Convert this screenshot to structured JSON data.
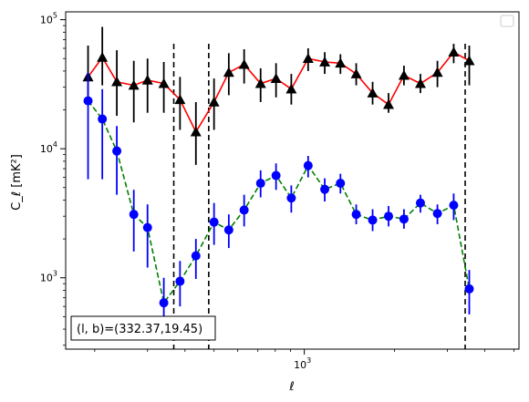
{
  "chart_data": {
    "type": "line",
    "title": "",
    "xlabel": "ℓ",
    "ylabel": "C_ℓ  [mK²]",
    "xscale": "log",
    "yscale": "log",
    "xlim": [
      160,
      5200
    ],
    "ylim": [
      280,
      115000
    ],
    "grid": false,
    "legend": {
      "placement": "top-right",
      "entries": []
    },
    "x_ticks": [
      {
        "value": 1000,
        "base": "10",
        "exp": "3"
      }
    ],
    "y_ticks": [
      {
        "value": 1000,
        "base": "10",
        "exp": "3"
      },
      {
        "value": 10000,
        "base": "10",
        "exp": "4"
      },
      {
        "value": 100000,
        "base": "10",
        "exp": "5"
      }
    ],
    "vlines": [
      367,
      480,
      3440
    ],
    "annotation": {
      "text": "(l, b)=(332.37,19.45)",
      "placement": "bottom-left"
    },
    "series": [
      {
        "color": "#ff0000",
        "marker": "triangle",
        "marker_color": "#000000",
        "error_color": "#000000",
        "points": [
          {
            "x": 190,
            "y": 36000,
            "lo": 22000,
            "hi": 63000
          },
          {
            "x": 212,
            "y": 51000,
            "lo": 31000,
            "hi": 88000
          },
          {
            "x": 237,
            "y": 33000,
            "lo": 18000,
            "hi": 58000
          },
          {
            "x": 270,
            "y": 31000,
            "lo": 16000,
            "hi": 48000
          },
          {
            "x": 300,
            "y": 34000,
            "lo": 19000,
            "hi": 50000
          },
          {
            "x": 340,
            "y": 32000,
            "lo": 19000,
            "hi": 47000
          },
          {
            "x": 385,
            "y": 24000,
            "lo": 14000,
            "hi": 36000
          },
          {
            "x": 435,
            "y": 13500,
            "lo": 7500,
            "hi": 23000
          },
          {
            "x": 500,
            "y": 23000,
            "lo": 14000,
            "hi": 35000
          },
          {
            "x": 560,
            "y": 39000,
            "lo": 26000,
            "hi": 55000
          },
          {
            "x": 630,
            "y": 45000,
            "lo": 32000,
            "hi": 59000
          },
          {
            "x": 715,
            "y": 32000,
            "lo": 23000,
            "hi": 42000
          },
          {
            "x": 805,
            "y": 35000,
            "lo": 25000,
            "hi": 46000
          },
          {
            "x": 905,
            "y": 29000,
            "lo": 22000,
            "hi": 38000
          },
          {
            "x": 1030,
            "y": 50000,
            "lo": 40000,
            "hi": 60000
          },
          {
            "x": 1170,
            "y": 47000,
            "lo": 38000,
            "hi": 56000
          },
          {
            "x": 1320,
            "y": 46000,
            "lo": 38000,
            "hi": 54000
          },
          {
            "x": 1490,
            "y": 38000,
            "lo": 31000,
            "hi": 46000
          },
          {
            "x": 1690,
            "y": 27000,
            "lo": 22000,
            "hi": 33000
          },
          {
            "x": 1910,
            "y": 22000,
            "lo": 19000,
            "hi": 27000
          },
          {
            "x": 2150,
            "y": 37000,
            "lo": 31000,
            "hi": 44000
          },
          {
            "x": 2440,
            "y": 32000,
            "lo": 27000,
            "hi": 38000
          },
          {
            "x": 3150,
            "y": 56000,
            "lo": 46000,
            "hi": 65000
          },
          {
            "x": 3550,
            "y": 48000,
            "lo": 31000,
            "hi": 63000
          },
          {
            "x": 2780,
            "y": 39000,
            "lo": 30000,
            "hi": 48000
          }
        ]
      },
      {
        "color": "#008000",
        "dashed": true,
        "marker": "circle",
        "marker_color": "#0000ff",
        "error_color": "#0000ff",
        "points": [
          {
            "x": 190,
            "y": 23500,
            "lo": 5800,
            "hi": 39000
          },
          {
            "x": 212,
            "y": 17000,
            "lo": 5800,
            "hi": 29000
          },
          {
            "x": 237,
            "y": 9600,
            "lo": 4400,
            "hi": 15000
          },
          {
            "x": 270,
            "y": 3100,
            "lo": 1600,
            "hi": 4800
          },
          {
            "x": 300,
            "y": 2450,
            "lo": 1200,
            "hi": 3700
          },
          {
            "x": 340,
            "y": 640,
            "lo": 330,
            "hi": 1000
          },
          {
            "x": 385,
            "y": 940,
            "lo": 600,
            "hi": 1350
          },
          {
            "x": 435,
            "y": 1480,
            "lo": 980,
            "hi": 2000
          },
          {
            "x": 500,
            "y": 2700,
            "lo": 1800,
            "hi": 3800
          },
          {
            "x": 560,
            "y": 2350,
            "lo": 1700,
            "hi": 3100
          },
          {
            "x": 630,
            "y": 3350,
            "lo": 2500,
            "hi": 4400
          },
          {
            "x": 715,
            "y": 5400,
            "lo": 4200,
            "hi": 6800
          },
          {
            "x": 805,
            "y": 6200,
            "lo": 4800,
            "hi": 7700
          },
          {
            "x": 905,
            "y": 4150,
            "lo": 3200,
            "hi": 5200
          },
          {
            "x": 1030,
            "y": 7400,
            "lo": 6000,
            "hi": 8800
          },
          {
            "x": 1170,
            "y": 4850,
            "lo": 3900,
            "hi": 5900
          },
          {
            "x": 1320,
            "y": 5400,
            "lo": 4500,
            "hi": 6400
          },
          {
            "x": 1490,
            "y": 3100,
            "lo": 2600,
            "hi": 3700
          },
          {
            "x": 1690,
            "y": 2800,
            "lo": 2300,
            "hi": 3400
          },
          {
            "x": 1910,
            "y": 3000,
            "lo": 2500,
            "hi": 3600
          },
          {
            "x": 2150,
            "y": 2850,
            "lo": 2400,
            "hi": 3400
          },
          {
            "x": 2440,
            "y": 3800,
            "lo": 3200,
            "hi": 4400
          },
          {
            "x": 2780,
            "y": 3150,
            "lo": 2600,
            "hi": 3700
          },
          {
            "x": 3150,
            "y": 3650,
            "lo": 2800,
            "hi": 4500
          },
          {
            "x": 3550,
            "y": 820,
            "lo": 520,
            "hi": 1150
          }
        ]
      }
    ]
  }
}
